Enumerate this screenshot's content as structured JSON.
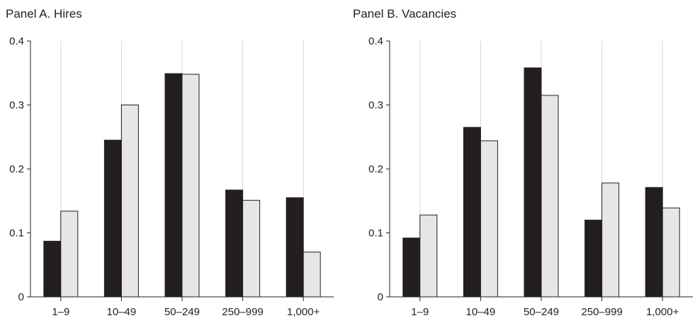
{
  "chart_data": [
    {
      "type": "bar",
      "title": "Panel A. Hires",
      "categories": [
        "1–9",
        "10–49",
        "50–249",
        "250–999",
        "1,000+"
      ],
      "series": [
        {
          "color": "#231f20",
          "values": [
            0.087,
            0.245,
            0.349,
            0.167,
            0.155
          ]
        },
        {
          "color": "#e6e6e6",
          "values": [
            0.134,
            0.3,
            0.348,
            0.151,
            0.07
          ]
        }
      ],
      "xlabel": "",
      "ylabel": "",
      "ylim": [
        0,
        0.4
      ],
      "yticks": [
        "0",
        "0.1",
        "0.2",
        "0.3",
        "0.4"
      ],
      "grid": "vertical"
    },
    {
      "type": "bar",
      "title": "Panel B. Vacancies",
      "categories": [
        "1–9",
        "10–49",
        "50–249",
        "250–999",
        "1,000+"
      ],
      "series": [
        {
          "color": "#231f20",
          "values": [
            0.092,
            0.265,
            0.358,
            0.12,
            0.171
          ]
        },
        {
          "color": "#e6e6e6",
          "values": [
            0.128,
            0.244,
            0.315,
            0.178,
            0.139
          ]
        }
      ],
      "xlabel": "",
      "ylabel": "",
      "ylim": [
        0,
        0.4
      ],
      "yticks": [
        "0",
        "0.1",
        "0.2",
        "0.3",
        "0.4"
      ],
      "grid": "vertical"
    }
  ]
}
